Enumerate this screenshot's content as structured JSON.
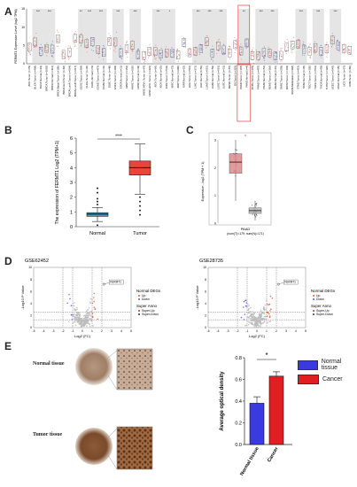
{
  "panel_labels": {
    "a": "A",
    "b": "B",
    "c": "C",
    "d": "D",
    "e": "E"
  },
  "colors": {
    "tumor": "#e8463a",
    "normal": "#3aa0c8",
    "panelA_tumor": "#e86868",
    "panelA_normal": "#7070d8",
    "shade": "#cfcfcf",
    "up": "#d9603a",
    "down": "#5a5ad8",
    "ns": "#bbbbbb",
    "normal_bar": "#3a3ae0",
    "cancer_bar": "#e02020"
  },
  "panelA": {
    "ylabel": "FERMT1 Expression Level (log2 TPM)",
    "yticks": [
      "0",
      "5",
      "10",
      "15"
    ],
    "columns": [
      {
        "name": "ACC.Tumor (n=79)",
        "sig": ""
      },
      {
        "name": "BLCA.Tumor (n=408)",
        "sig": "***"
      },
      {
        "name": "BLCA.Normal (n=19)",
        "sig": ""
      },
      {
        "name": "BRCA.Tumor (n=1093)",
        "sig": "***"
      },
      {
        "name": "BRCA.Normal (n=112)",
        "sig": ""
      },
      {
        "name": "BRCA-Basal.Tumor (n=190)",
        "sig": ""
      },
      {
        "name": "BRCA-Her2.Tumor (n=82)",
        "sig": ""
      },
      {
        "name": "BRCA-LumA.Tumor (n=564)",
        "sig": ""
      },
      {
        "name": "BRCA-LumB.Tumor (n=217)",
        "sig": ""
      },
      {
        "name": "CESC.Tumor (n=304)",
        "sig": "**"
      },
      {
        "name": "CHOL.Tumor (n=36)",
        "sig": "***"
      },
      {
        "name": "CHOL.Normal (n=9)",
        "sig": ""
      },
      {
        "name": "COAD.Tumor (n=457)",
        "sig": "***"
      },
      {
        "name": "COAD.Normal (n=41)",
        "sig": ""
      },
      {
        "name": "DLBC.Tumor (n=48)",
        "sig": ""
      },
      {
        "name": "ESCA.Tumor (n=184)",
        "sig": "***"
      },
      {
        "name": "ESCA.Normal (n=11)",
        "sig": ""
      },
      {
        "name": "GBM.Tumor (n=153)",
        "sig": ""
      },
      {
        "name": "HNSC.Tumor (n=520)",
        "sig": "***"
      },
      {
        "name": "HNSC.Normal (n=44)",
        "sig": ""
      },
      {
        "name": "HNSC-HPV+.Tumor (n=97)",
        "sig": ""
      },
      {
        "name": "HNSC-HPV-.Tumor (n=421)",
        "sig": ""
      },
      {
        "name": "KICH.Tumor (n=66)",
        "sig": "***"
      },
      {
        "name": "KICH.Normal (n=25)",
        "sig": ""
      },
      {
        "name": "KIRC.Tumor (n=533)",
        "sig": "*"
      },
      {
        "name": "KIRC.Normal (n=72)",
        "sig": ""
      },
      {
        "name": "KIRP.Tumor (n=290)",
        "sig": ""
      },
      {
        "name": "KIRP.Normal (n=32)",
        "sig": ""
      },
      {
        "name": "LGG.Tumor (n=516)",
        "sig": ""
      },
      {
        "name": "LIHC.Tumor (n=371)",
        "sig": "***"
      },
      {
        "name": "LIHC.Normal (n=50)",
        "sig": ""
      },
      {
        "name": "LUAD.Tumor (n=515)",
        "sig": "***"
      },
      {
        "name": "LUAD.Normal (n=59)",
        "sig": ""
      },
      {
        "name": "LUSC.Tumor (n=501)",
        "sig": "***"
      },
      {
        "name": "LUSC.Normal (n=51)",
        "sig": ""
      },
      {
        "name": "MESO.Tumor (n=87)",
        "sig": ""
      },
      {
        "name": "OV.Tumor (n=303)",
        "sig": ""
      },
      {
        "name": "PAAD.Tumor (n=178)",
        "sig": "**"
      },
      {
        "name": "PAAD.Normal (n=4)",
        "sig": ""
      },
      {
        "name": "PCPG.Tumor (n=179)",
        "sig": ""
      },
      {
        "name": "PRAD.Tumor (n=497)",
        "sig": "***"
      },
      {
        "name": "PRAD.Normal (n=52)",
        "sig": ""
      },
      {
        "name": "READ.Tumor (n=166)",
        "sig": "***"
      },
      {
        "name": "READ.Normal (n=10)",
        "sig": ""
      },
      {
        "name": "SARC.Tumor (n=259)",
        "sig": ""
      },
      {
        "name": "SKCM.Tumor (n=103)",
        "sig": ""
      },
      {
        "name": "SKCM.Metastasis (n=368)",
        "sig": ""
      },
      {
        "name": "STAD.Tumor (n=415)",
        "sig": "***"
      },
      {
        "name": "STAD.Normal (n=35)",
        "sig": ""
      },
      {
        "name": "TGCT.Tumor (n=150)",
        "sig": ""
      },
      {
        "name": "THCA.Tumor (n=501)",
        "sig": "***"
      },
      {
        "name": "THCA.Normal (n=59)",
        "sig": ""
      },
      {
        "name": "THYM.Tumor (n=120)",
        "sig": ""
      },
      {
        "name": "UCEC.Tumor (n=545)",
        "sig": "***"
      },
      {
        "name": "UCEC.Normal (n=35)",
        "sig": ""
      },
      {
        "name": "UCS.Tumor (n=57)",
        "sig": ""
      },
      {
        "name": "UVM.Tumor (n=80)",
        "sig": ""
      }
    ]
  },
  "chart_data": [
    {
      "panel": "B",
      "type": "box",
      "ylabel": "The expression of FERMT1 Log2 (TPM+1)",
      "ylim": [
        0,
        6
      ],
      "yticks": [
        "0",
        "1",
        "2",
        "3",
        "4",
        "5",
        "6"
      ],
      "categories": [
        "Normal",
        "Tumor"
      ],
      "series": [
        {
          "name": "Normal",
          "q1": 0.7,
          "median": 0.85,
          "q3": 0.95,
          "whisker_low": 0.35,
          "whisker_high": 1.3,
          "outliers": [
            1.5,
            1.7,
            1.9,
            2.3,
            2.6,
            0.1
          ]
        },
        {
          "name": "Tumor",
          "q1": 3.5,
          "median": 4.0,
          "q3": 4.45,
          "whisker_low": 2.2,
          "whisker_high": 5.6,
          "outliers": [
            2.0,
            1.7,
            1.4,
            1.1,
            0.8
          ]
        }
      ],
      "significance": "****"
    },
    {
      "panel": "C",
      "type": "box",
      "ylabel": "Expression - log2 (TPM + 1)",
      "ylim": [
        0,
        3
      ],
      "yticks": [
        "0",
        "1",
        "2",
        "3"
      ],
      "xlabel": "PAAD",
      "subtitle": "(num(T)=179; num(N)=171)",
      "categories": [
        "Tumor",
        "Normal"
      ],
      "series": [
        {
          "name": "Tumor",
          "q1": 1.8,
          "median": 2.2,
          "q3": 2.5,
          "whisker_low": 0.8,
          "whisker_high": 3.0
        },
        {
          "name": "Normal",
          "q1": 0.35,
          "median": 0.45,
          "q3": 0.55,
          "whisker_low": 0.1,
          "whisker_high": 0.8
        }
      ],
      "significance": "*"
    },
    {
      "panel": "D-left",
      "type": "scatter",
      "title": "GSE62452",
      "xlabel": "Log2 (FC)",
      "ylabel": "-Log10 P Value",
      "xlim": [
        -5,
        5
      ],
      "ylim": [
        0,
        10
      ],
      "xticks": [
        "-5",
        "-4",
        "-3",
        "-2",
        "-1",
        "0",
        "1",
        "2",
        "3",
        "4",
        "5"
      ],
      "yticks": [
        "0",
        "2",
        "4",
        "6",
        "8",
        "10"
      ],
      "highlight": "FERMT1",
      "legend": {
        "title1": "Normal DEGs",
        "items1": [
          "Up",
          "Down"
        ],
        "title2": "Super Anno",
        "items2": [
          "Super-Up",
          "Super-Down"
        ]
      }
    },
    {
      "panel": "D-right",
      "type": "scatter",
      "title": "GSE28735",
      "xlabel": "Log2 (FC)",
      "ylabel": "-Log10 P Value",
      "xlim": [
        -5,
        5
      ],
      "ylim": [
        0,
        10
      ],
      "xticks": [
        "-5",
        "-4",
        "-3",
        "-2",
        "-1",
        "0",
        "1",
        "2",
        "3",
        "4",
        "5"
      ],
      "yticks": [
        "0",
        "2",
        "4",
        "6",
        "8",
        "10"
      ],
      "highlight": "FERMT1",
      "legend": {
        "title1": "Normal DEGs",
        "items1": [
          "Up",
          "Down"
        ],
        "title2": "Super Anno",
        "items2": [
          "Super-Up",
          "Super-Down"
        ]
      }
    },
    {
      "panel": "E",
      "type": "bar",
      "ylabel": "Average optical density",
      "ylim": [
        0,
        0.8
      ],
      "yticks": [
        "0.0",
        "0.2",
        "0.4",
        "0.6",
        "0.8"
      ],
      "categories": [
        "Normal tissue",
        "Cancer"
      ],
      "values": [
        0.38,
        0.63
      ],
      "errors": [
        0.06,
        0.04
      ],
      "significance": "*",
      "legend": [
        "Normal tissue",
        "Cancer"
      ]
    }
  ],
  "panelE": {
    "normal_label": "Normal tissue",
    "tumor_label": "Tumor tissue"
  }
}
